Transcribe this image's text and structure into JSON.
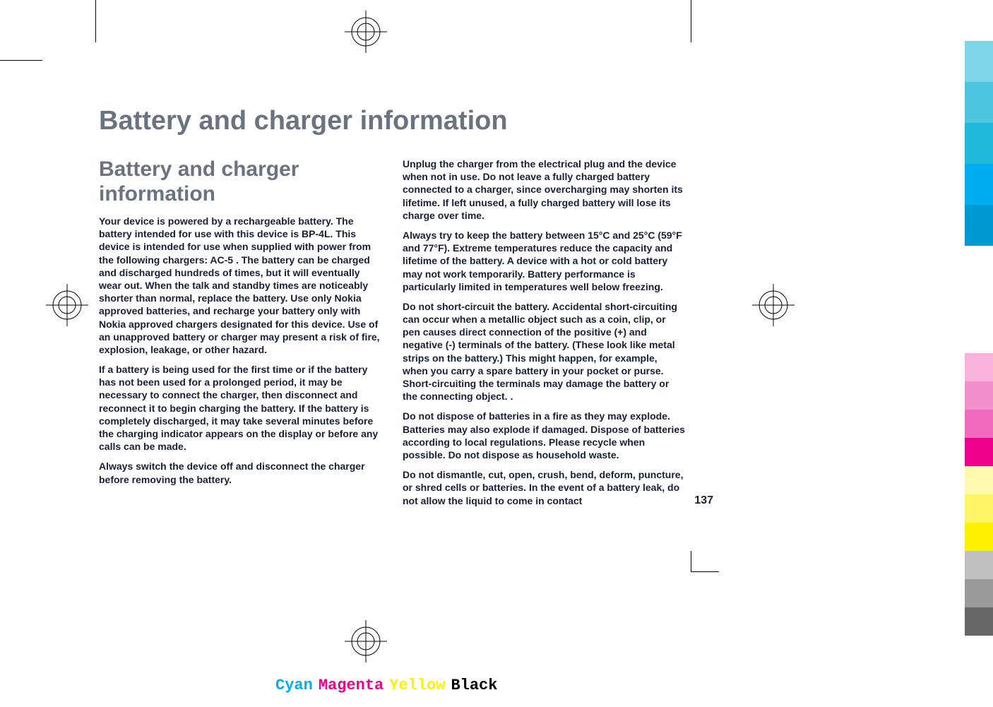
{
  "page": {
    "main_title": "Battery and charger information",
    "section_title": "Battery and charger information",
    "page_number": "137"
  },
  "column1": {
    "p1": "Your device is powered by a rechargeable battery. The battery intended for use with this device is BP-4L. This device is intended for use when supplied with power from the following chargers: AC-5 . The battery can be charged and discharged hundreds of times, but it will eventually wear out. When the talk and standby times are noticeably shorter than normal, replace the battery. Use only Nokia approved batteries, and recharge your battery only with Nokia approved chargers designated for this device. Use of an unapproved battery or charger may present a risk of fire, explosion, leakage, or other hazard.",
    "p2": "If a battery is being used for the first time or if the battery has not been used for a prolonged period, it may be necessary to connect the charger, then disconnect and reconnect it to begin charging the battery. If the battery is completely discharged, it may take several minutes before the charging indicator appears on the display or before any calls can be made.",
    "p3": "Always switch the device off and disconnect the charger before removing the battery."
  },
  "column2": {
    "p1": "Unplug the charger from the electrical plug and the device when not in use. Do not leave a fully charged battery connected to a charger, since overcharging may shorten its lifetime. If left unused, a fully charged battery will lose its charge over time.",
    "p2": "Always try to keep the battery between 15°C and 25°C (59°F and 77°F). Extreme temperatures reduce the capacity and lifetime of the battery. A device with a hot or cold battery may not work temporarily. Battery performance is particularly limited in temperatures well below freezing.",
    "p3": "Do not short-circuit the battery. Accidental short-circuiting can occur when a metallic object such as a coin, clip, or pen causes direct connection of the positive (+) and negative (-) terminals of the battery. (These look like metal strips on the battery.) This might happen, for example, when you carry a spare battery in your pocket or purse. Short-circuiting the terminals may damage the battery or the connecting object. .",
    "p4": "Do not dispose of batteries in a fire as they may explode. Batteries may also explode if damaged. Dispose of batteries according to local regulations. Please recycle when possible. Do not dispose as household waste.",
    "p5": "Do not dismantle, cut, open, crush, bend, deform, puncture, or shred cells or batteries. In the event of a battery leak, do not allow the liquid to come in contact"
  },
  "print_marks": {
    "color_labels": {
      "cyan": {
        "text": "Cyan",
        "color": "#00aeef"
      },
      "magenta": {
        "text": "Magenta",
        "color": "#ec008c"
      },
      "yellow": {
        "text": "Yellow",
        "color": "#fff200"
      },
      "black": {
        "text": "Black",
        "color": "#000000"
      }
    },
    "color_bar_1": [
      "#7fd4e8",
      "#4fc6e0",
      "#1fb8d8",
      "#00aeef",
      "#0099d4"
    ],
    "color_bar_2": [
      "#f7b3d9",
      "#f48fcb",
      "#f06bbd",
      "#ec008c",
      "#fff9b0",
      "#fff566",
      "#fff200",
      "#bfbfbf",
      "#999999",
      "#666666"
    ]
  },
  "styling": {
    "title_color": "#6b7280",
    "body_color": "#1a1f36",
    "background_color": "#ffffff",
    "main_title_fontsize": 38,
    "section_title_fontsize": 30,
    "body_fontsize": 14
  }
}
